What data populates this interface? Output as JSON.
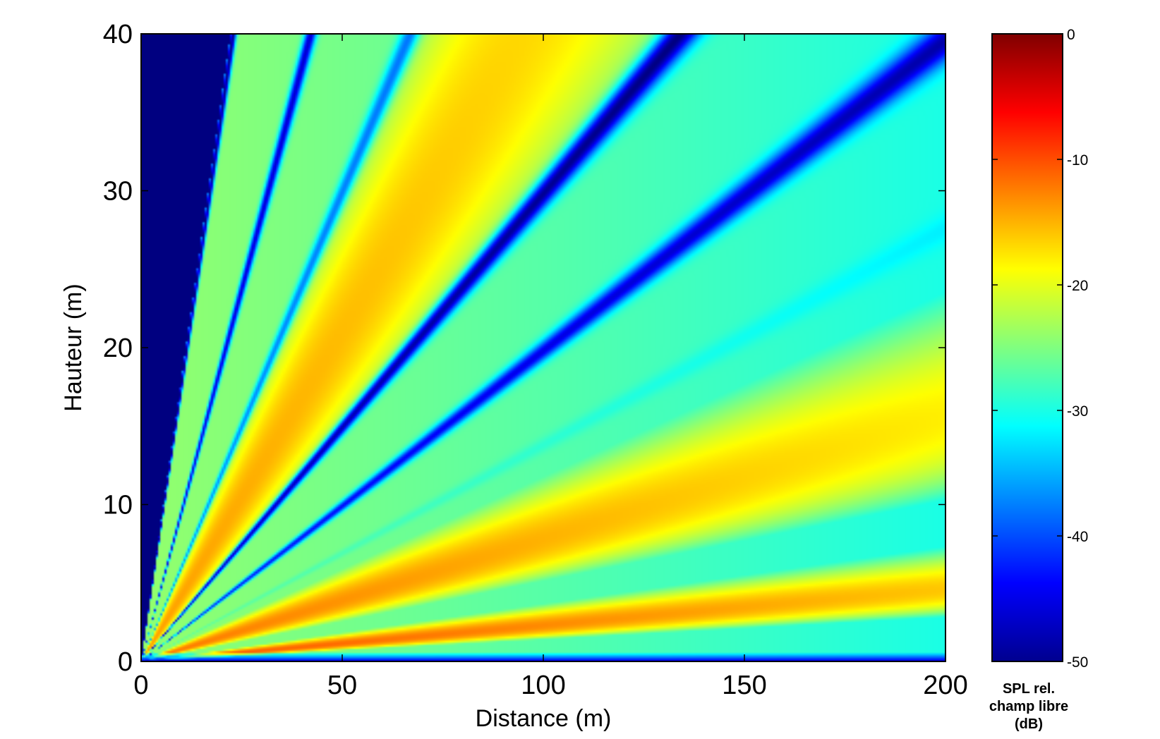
{
  "chart_data": {
    "type": "heatmap",
    "title": "",
    "xlabel": "Distance (m)",
    "ylabel": "Hauteur (m)",
    "xlim": [
      0,
      200
    ],
    "ylim": [
      0,
      40
    ],
    "xticks": [
      0,
      50,
      100,
      150,
      200
    ],
    "yticks": [
      0,
      10,
      20,
      30,
      40
    ],
    "colormap": "jet",
    "colorbar": {
      "range": [
        -50,
        0
      ],
      "ticks": [
        0,
        -10,
        -20,
        -30,
        -40,
        -50
      ],
      "title_lines": [
        "SPL rel.",
        "champ libre",
        "(dB)"
      ]
    },
    "grid": false,
    "field": {
      "description_units": "SPL relative to free field (dB) as a function of distance and height",
      "lobes": [
        {
          "height_over_distance": 0.025,
          "peak_db": -10,
          "kind": "max"
        },
        {
          "height_over_distance": 0.08,
          "peak_db": -12,
          "kind": "max"
        },
        {
          "height_over_distance": 0.14,
          "peak_db": -26,
          "kind": "min"
        },
        {
          "height_over_distance": 0.2,
          "peak_db": -42,
          "kind": "min"
        },
        {
          "height_over_distance": 0.3,
          "peak_db": -46,
          "kind": "min"
        },
        {
          "height_over_distance": 0.42,
          "peak_db": -14,
          "kind": "max"
        },
        {
          "height_over_distance": 0.6,
          "peak_db": -36,
          "kind": "min"
        },
        {
          "height_over_distance": 0.95,
          "peak_db": -45,
          "kind": "min"
        },
        {
          "height_over_distance": 1.75,
          "peak_db": -49,
          "kind": "min"
        }
      ],
      "ground_band": {
        "height_max": 0.6,
        "value_db": -46
      },
      "near_source_region": {
        "height_over_distance_min": 1.8,
        "value_db": -50
      }
    }
  }
}
